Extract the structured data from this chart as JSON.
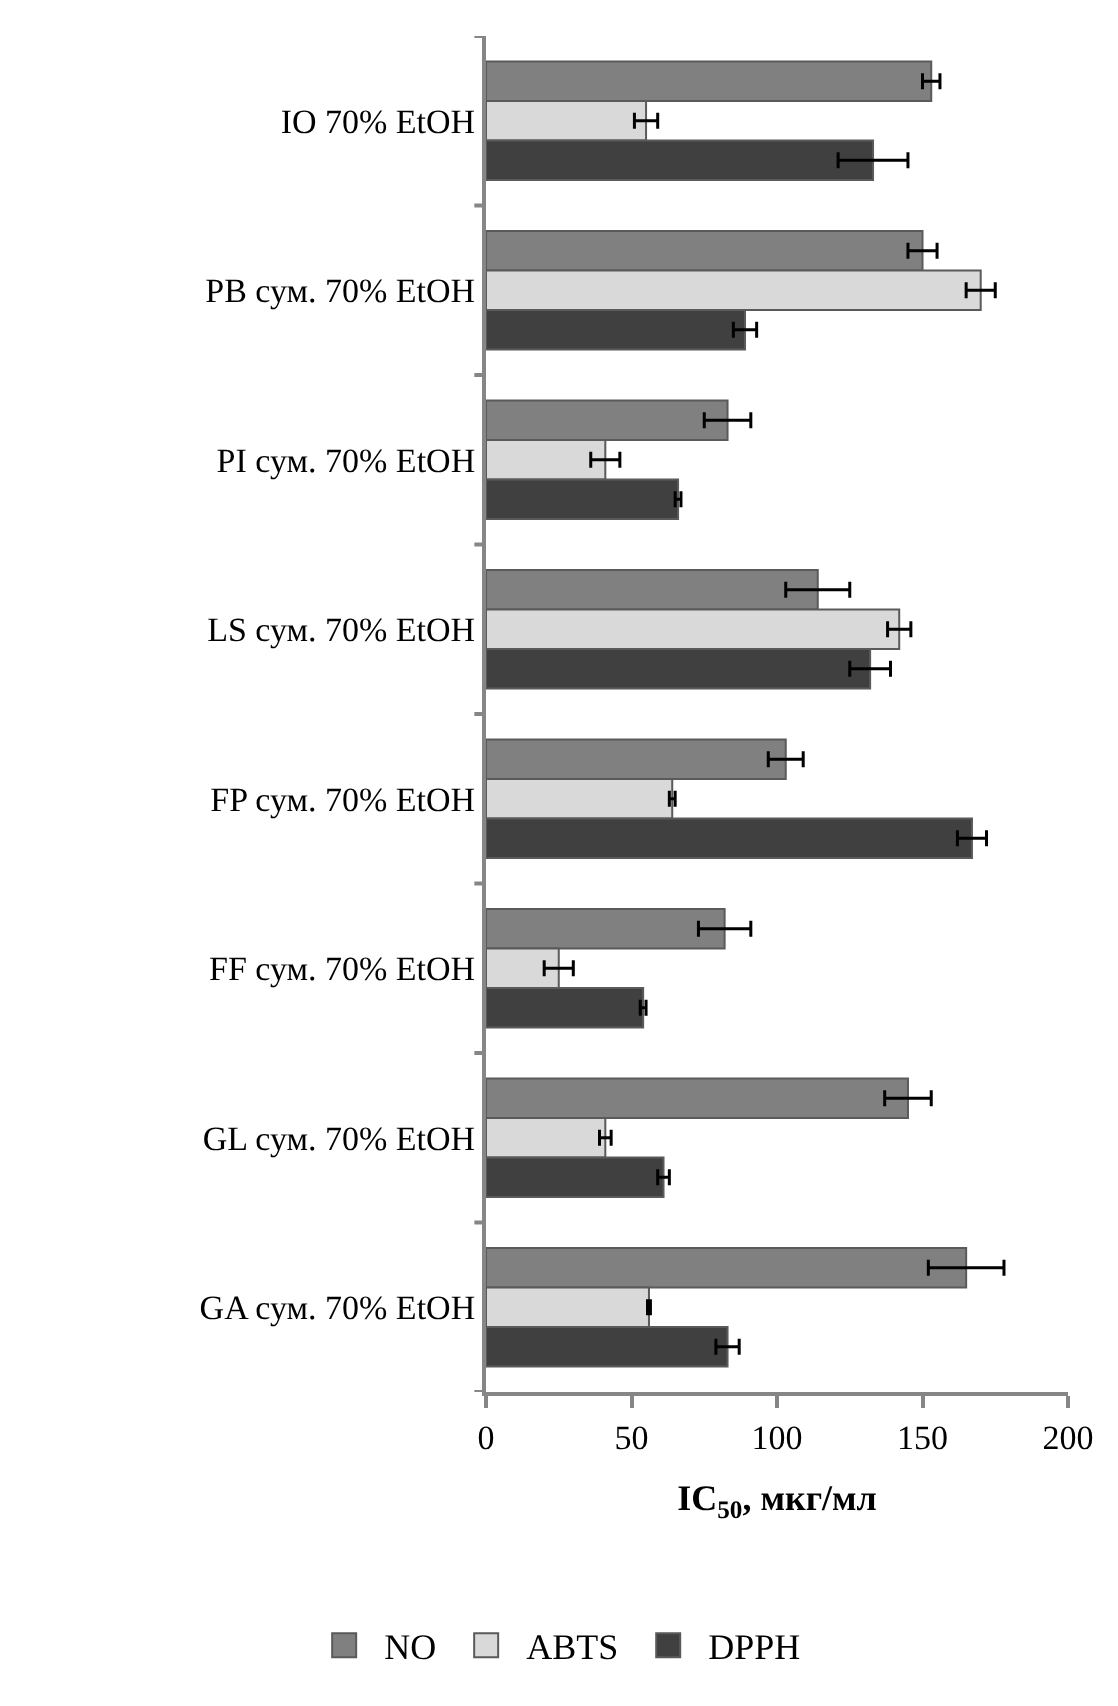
{
  "chart_data": {
    "type": "bar",
    "orientation": "horizontal",
    "categories": [
      "IO 70% EtOH",
      "PB сум. 70% EtOH",
      "PI сум. 70% EtOH",
      "LS сум. 70% EtOH",
      "FP сум. 70% EtOH",
      "FF сум. 70% EtOH",
      "GL сум. 70% EtOH",
      "GA сум. 70% EtOH"
    ],
    "series": [
      {
        "name": "NO",
        "color": "#808080",
        "values": [
          153,
          150,
          83,
          114,
          103,
          82,
          145,
          165
        ],
        "errors": [
          3,
          5,
          8,
          11,
          6,
          9,
          8,
          13
        ]
      },
      {
        "name": "ABTS",
        "color": "#d9d9d9",
        "values": [
          55,
          170,
          41,
          142,
          64,
          25,
          41,
          56
        ],
        "errors": [
          4,
          5,
          5,
          4,
          1,
          5,
          2,
          0.5
        ]
      },
      {
        "name": "DPPH",
        "color": "#404040",
        "values": [
          133,
          89,
          66,
          132,
          167,
          54,
          61,
          83
        ],
        "errors": [
          12,
          4,
          1,
          7,
          5,
          1,
          2,
          4
        ]
      }
    ],
    "xlabel": "IC$_{50}$, мкг/мл",
    "xlim": [
      0,
      200
    ],
    "xticks": [
      0,
      50,
      100,
      150,
      200
    ],
    "legend": "bottom"
  }
}
